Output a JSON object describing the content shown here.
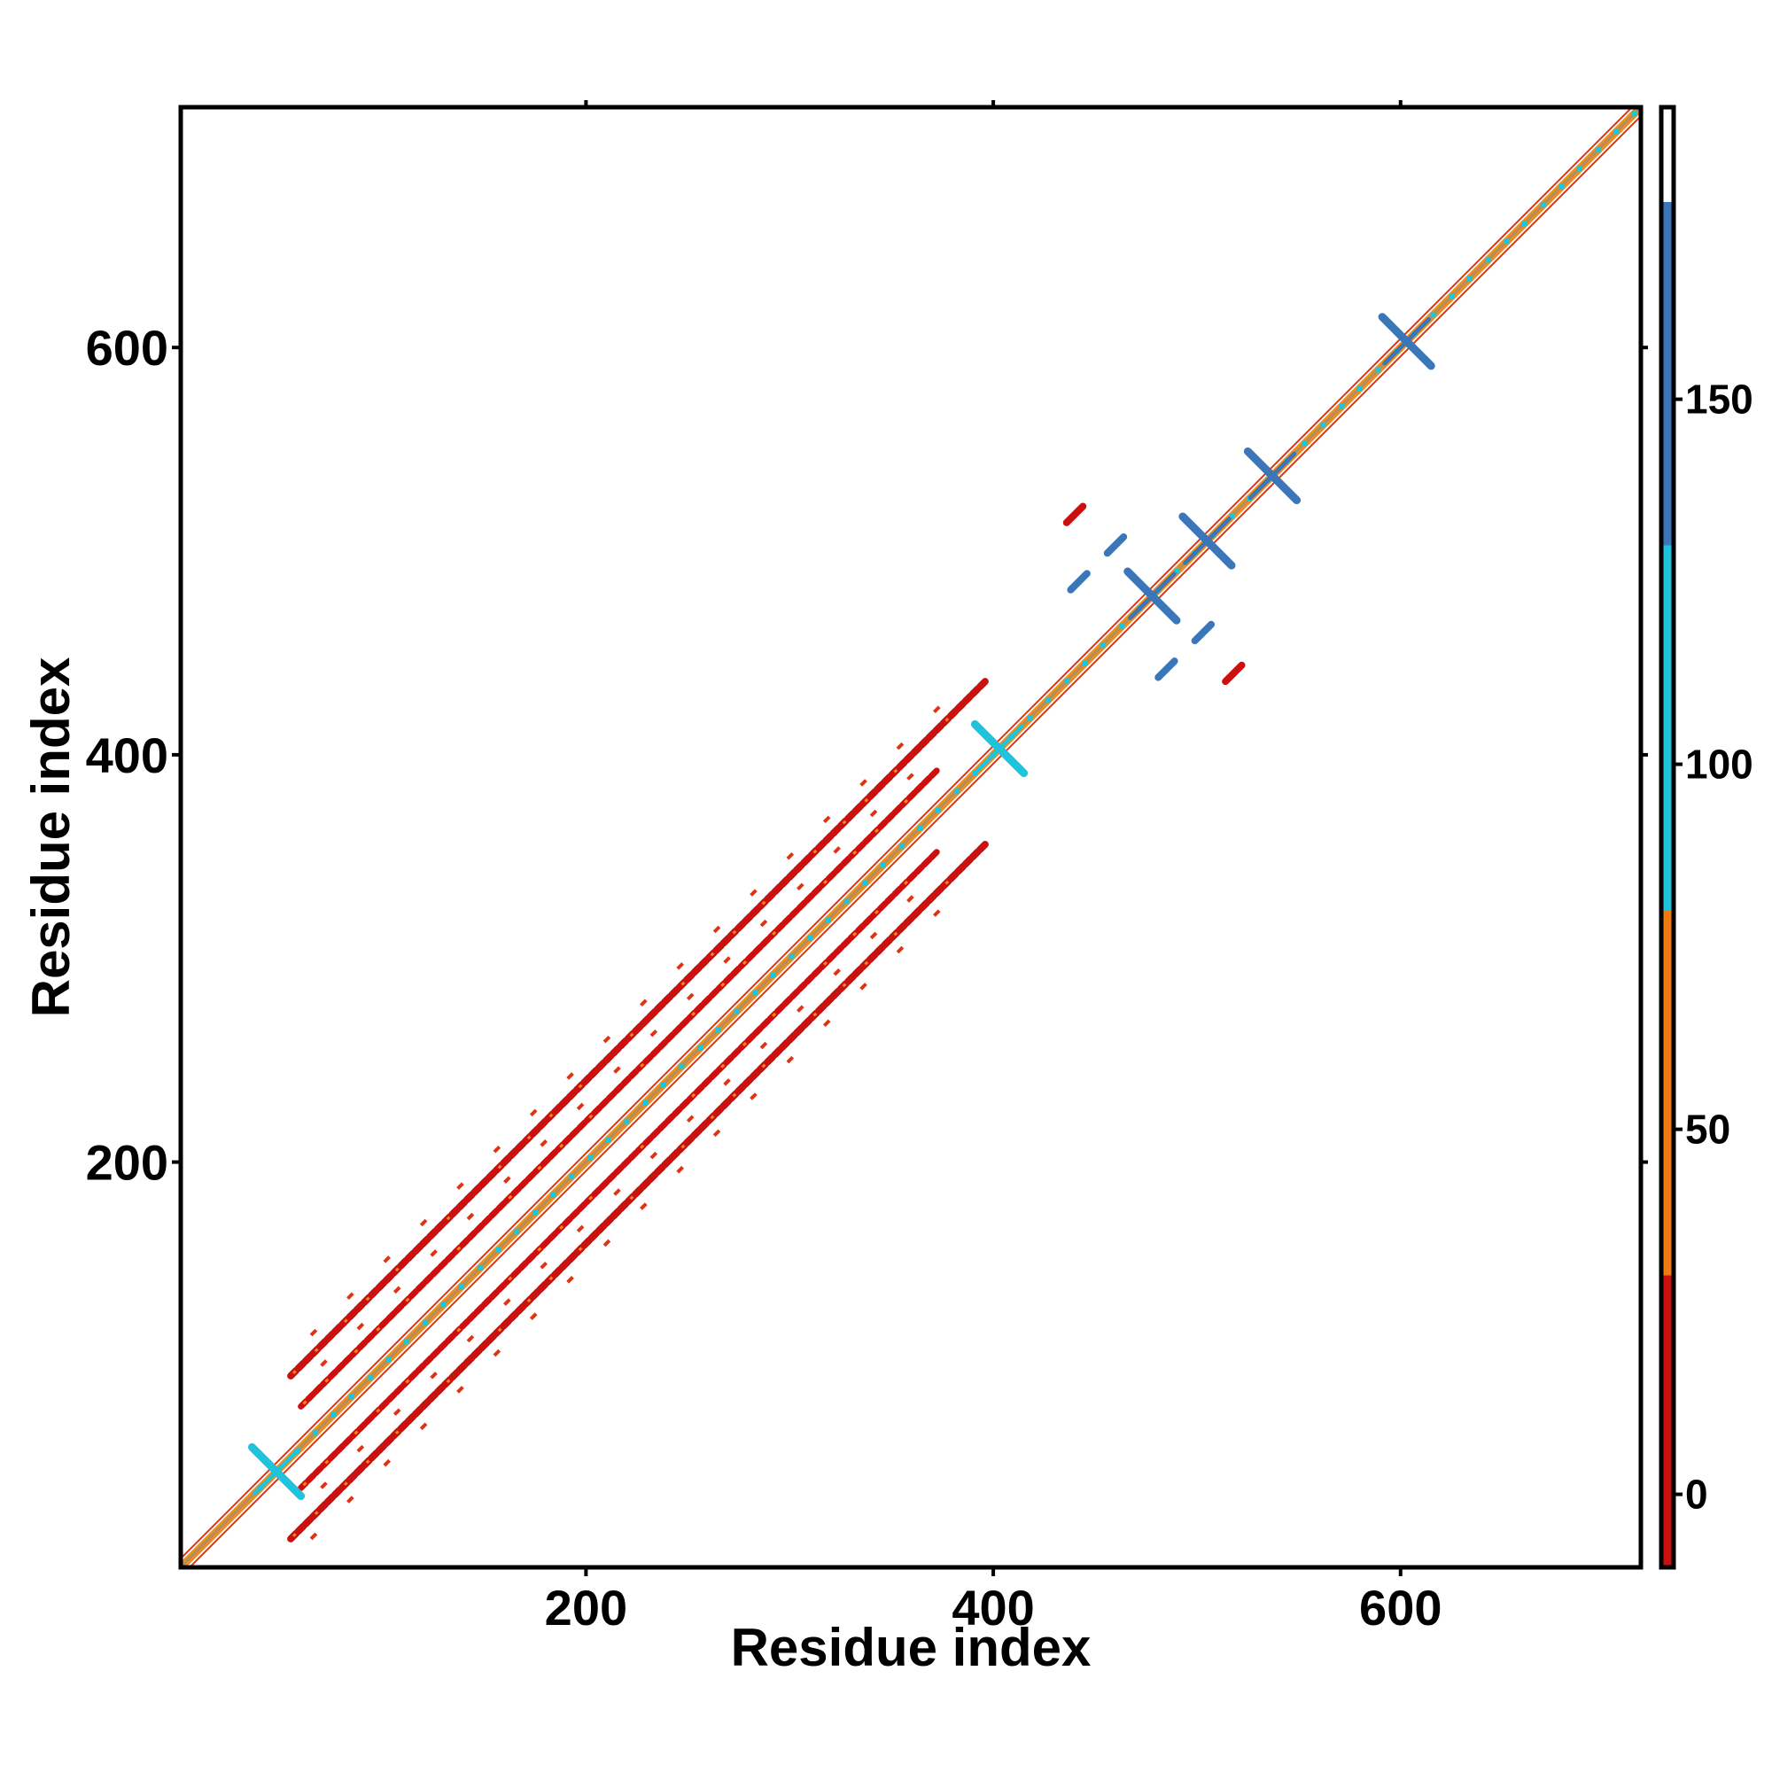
{
  "chart_data": {
    "type": "heatmap",
    "title": "",
    "xlabel": "Residue index",
    "ylabel": "Residue index",
    "xlim": [
      1,
      718
    ],
    "ylim": [
      1,
      718
    ],
    "x_ticks": [
      200,
      400,
      600
    ],
    "y_ticks": [
      200,
      400,
      600
    ],
    "colorbar": {
      "range": [
        -10,
        190
      ],
      "ticks": [
        0,
        50,
        100,
        150
      ],
      "stops": [
        {
          "from": -10,
          "to": 30,
          "color": "#cc1010"
        },
        {
          "from": 30,
          "to": 80,
          "color": "#f07a10"
        },
        {
          "from": 80,
          "to": 130,
          "color": "#1fc3dc"
        },
        {
          "from": 130,
          "to": 177,
          "color": "#3a76b8"
        },
        {
          "from": 177,
          "to": 190,
          "color": "#ffffff"
        }
      ]
    },
    "colors": {
      "red": "#e8300e",
      "orange": "#f28a18",
      "olive": "#a89060",
      "cyan": "#1cc6dd",
      "blue": "#3f86c6"
    },
    "main_diagonal": {
      "from": 1,
      "to": 718
    },
    "diagonal_bands": [
      {
        "offset": 20,
        "from": 60,
        "to": 372,
        "value": 10
      },
      {
        "offset": -20,
        "from": 60,
        "to": 372,
        "value": 10
      },
      {
        "offset": 40,
        "from": 55,
        "to": 395,
        "value": 5
      },
      {
        "offset": -40,
        "from": 55,
        "to": 395,
        "value": 5
      }
    ],
    "crossings": [
      {
        "x": 48,
        "y": 48,
        "value": 120
      },
      {
        "x": 403,
        "y": 403,
        "value": 110
      },
      {
        "x": 478,
        "y": 478,
        "value": 140
      },
      {
        "x": 505,
        "y": 505,
        "value": 150
      },
      {
        "x": 537,
        "y": 537,
        "value": 150
      },
      {
        "x": 603,
        "y": 603,
        "value": 155
      }
    ],
    "off_diagonal_contacts": [
      {
        "x": 440,
        "y": 518,
        "value": 20
      },
      {
        "x": 518,
        "y": 440,
        "value": 20
      },
      {
        "x": 442,
        "y": 485,
        "value": 140
      },
      {
        "x": 485,
        "y": 442,
        "value": 140
      },
      {
        "x": 460,
        "y": 503,
        "value": 140
      },
      {
        "x": 503,
        "y": 460,
        "value": 140
      }
    ]
  }
}
